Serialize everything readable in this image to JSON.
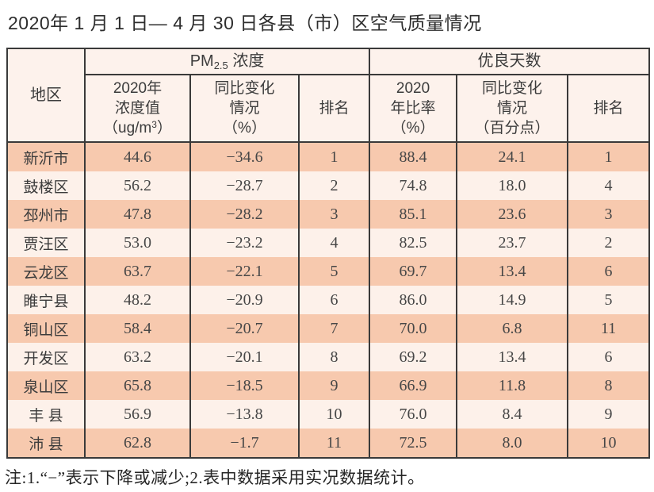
{
  "title": "2020年 1 月 1 日— 4 月 30 日各县（市）区空气质量情况",
  "footnote": "注:1.“−”表示下降或减少;2.表中数据采用实况数据统计。",
  "colors": {
    "row_dark": "#f7c9ae",
    "row_light": "#fdf1ea",
    "header_bg": "#fdf2ec",
    "border": "#3a3a3a"
  },
  "table": {
    "region_header": "地区",
    "pm_group": {
      "prefix": "PM",
      "sub": "2.5",
      "suffix": " 浓度"
    },
    "good_group": "优良天数",
    "pm_value_header": {
      "line1": "2020年",
      "line2": "浓度值",
      "unit_pre": "（ug/m",
      "unit_sup": "3",
      "unit_post": "）"
    },
    "pm_change_header": {
      "line1": "同比变化",
      "line2": "情况",
      "line3": "（%）"
    },
    "pm_rank_header": "排名",
    "good_rate_header": {
      "line1": "2020",
      "line2": "年比率",
      "line3": "（%）"
    },
    "good_change_header": {
      "line1": "同比变化",
      "line2": "情况",
      "line3": "（百分点）"
    },
    "good_rank_header": "排名",
    "rows": [
      {
        "region": "新沂市",
        "pm_value": "44.6",
        "pm_change": "−34.6",
        "pm_rank": "1",
        "good_rate": "88.4",
        "good_change": "24.1",
        "good_rank": "1"
      },
      {
        "region": "鼓楼区",
        "pm_value": "56.2",
        "pm_change": "−28.7",
        "pm_rank": "2",
        "good_rate": "74.8",
        "good_change": "18.0",
        "good_rank": "4"
      },
      {
        "region": "邳州市",
        "pm_value": "47.8",
        "pm_change": "−28.2",
        "pm_rank": "3",
        "good_rate": "85.1",
        "good_change": "23.6",
        "good_rank": "3"
      },
      {
        "region": "贾汪区",
        "pm_value": "53.0",
        "pm_change": "−23.2",
        "pm_rank": "4",
        "good_rate": "82.5",
        "good_change": "23.7",
        "good_rank": "2"
      },
      {
        "region": "云龙区",
        "pm_value": "63.7",
        "pm_change": "−22.1",
        "pm_rank": "5",
        "good_rate": "69.7",
        "good_change": "13.4",
        "good_rank": "6"
      },
      {
        "region": "睢宁县",
        "pm_value": "48.2",
        "pm_change": "−20.9",
        "pm_rank": "6",
        "good_rate": "86.0",
        "good_change": "14.9",
        "good_rank": "5"
      },
      {
        "region": "铜山区",
        "pm_value": "58.4",
        "pm_change": "−20.7",
        "pm_rank": "7",
        "good_rate": "70.0",
        "good_change": "6.8",
        "good_rank": "11"
      },
      {
        "region": "开发区",
        "pm_value": "63.2",
        "pm_change": "−20.1",
        "pm_rank": "8",
        "good_rate": "69.2",
        "good_change": "13.4",
        "good_rank": "6"
      },
      {
        "region": "泉山区",
        "pm_value": "65.8",
        "pm_change": "−18.5",
        "pm_rank": "9",
        "good_rate": "66.9",
        "good_change": "11.8",
        "good_rank": "8"
      },
      {
        "region": "丰 县",
        "pm_value": "56.9",
        "pm_change": "−13.8",
        "pm_rank": "10",
        "good_rate": "76.0",
        "good_change": "8.4",
        "good_rank": "9"
      },
      {
        "region": "沛 县",
        "pm_value": "62.8",
        "pm_change": "−1.7",
        "pm_rank": "11",
        "good_rate": "72.5",
        "good_change": "8.0",
        "good_rank": "10"
      }
    ]
  }
}
